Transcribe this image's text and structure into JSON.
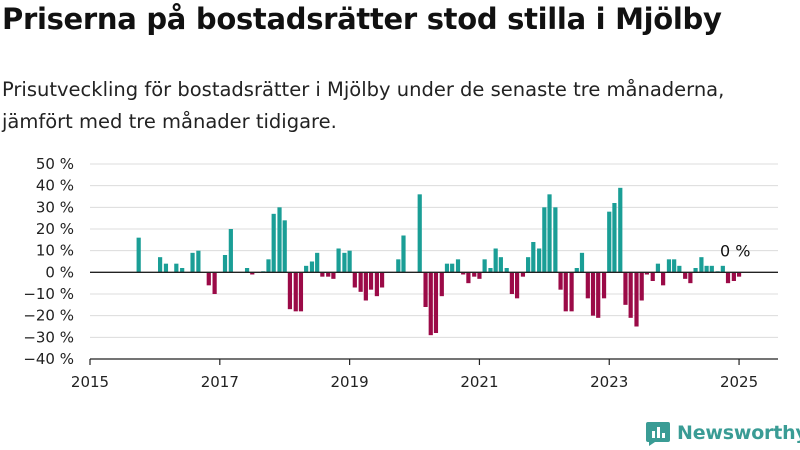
{
  "title": "Priserna på bostadsrätter stod stilla i Mjölby",
  "subtitle": "Prisutveckling för bostadsrätter i Mjölby under de senaste tre månaderna, jämfört med tre månader tidigare.",
  "brand": {
    "name": "Newsworthy",
    "color": "#3a9c95"
  },
  "colors": {
    "positive": "#1a9e96",
    "negative": "#9b0a47",
    "grid": "#dcdcdc",
    "axis": "#222222"
  },
  "chart_data": {
    "type": "bar",
    "title": "Priserna på bostadsrätter stod stilla i Mjölby",
    "xlabel": "",
    "ylabel": "",
    "ylim": [
      -40,
      50
    ],
    "xlim": [
      2015,
      2025.6
    ],
    "yticks": [
      {
        "value": 50,
        "label": "50 %"
      },
      {
        "value": 40,
        "label": "40 %"
      },
      {
        "value": 30,
        "label": "30 %"
      },
      {
        "value": 20,
        "label": "20 %"
      },
      {
        "value": 10,
        "label": "10 %"
      },
      {
        "value": 0,
        "label": "0 %"
      },
      {
        "value": -10,
        "label": "−10 %"
      },
      {
        "value": -20,
        "label": "−20 %"
      },
      {
        "value": -30,
        "label": "−30 %"
      },
      {
        "value": -40,
        "label": "−40 %"
      }
    ],
    "xticks": [
      {
        "value": 2015,
        "label": "2015"
      },
      {
        "value": 2017,
        "label": "2017"
      },
      {
        "value": 2019,
        "label": "2019"
      },
      {
        "value": 2021,
        "label": "2021"
      },
      {
        "value": 2023,
        "label": "2023"
      },
      {
        "value": 2025,
        "label": "2025"
      }
    ],
    "grid": true,
    "annotation": {
      "text": "0 %",
      "x": 2024.83,
      "y": 0
    },
    "series": [
      {
        "values": [
          [
            2015.75,
            16
          ],
          [
            2016.08,
            7
          ],
          [
            2016.17,
            4
          ],
          [
            2016.33,
            4
          ],
          [
            2016.42,
            2
          ],
          [
            2016.58,
            9
          ],
          [
            2016.67,
            10
          ],
          [
            2016.83,
            -6
          ],
          [
            2016.92,
            -10
          ],
          [
            2017.08,
            8
          ],
          [
            2017.17,
            20
          ],
          [
            2017.42,
            2
          ],
          [
            2017.5,
            -1
          ],
          [
            2017.67,
            0.5
          ],
          [
            2017.75,
            6
          ],
          [
            2017.83,
            27
          ],
          [
            2017.92,
            30
          ],
          [
            2018.0,
            24
          ],
          [
            2018.08,
            -17
          ],
          [
            2018.17,
            -18
          ],
          [
            2018.25,
            -18
          ],
          [
            2018.33,
            3
          ],
          [
            2018.42,
            5
          ],
          [
            2018.5,
            9
          ],
          [
            2018.58,
            -2
          ],
          [
            2018.67,
            -2
          ],
          [
            2018.75,
            -3
          ],
          [
            2018.83,
            11
          ],
          [
            2018.92,
            9
          ],
          [
            2019.0,
            10
          ],
          [
            2019.08,
            -7
          ],
          [
            2019.17,
            -9
          ],
          [
            2019.25,
            -13
          ],
          [
            2019.33,
            -8
          ],
          [
            2019.42,
            -11
          ],
          [
            2019.5,
            -7
          ],
          [
            2019.75,
            6
          ],
          [
            2019.83,
            17
          ],
          [
            2020.08,
            36
          ],
          [
            2020.17,
            -16
          ],
          [
            2020.25,
            -29
          ],
          [
            2020.33,
            -28
          ],
          [
            2020.42,
            -11
          ],
          [
            2020.5,
            4
          ],
          [
            2020.58,
            4
          ],
          [
            2020.67,
            6
          ],
          [
            2020.75,
            -1
          ],
          [
            2020.83,
            -5
          ],
          [
            2020.92,
            -2
          ],
          [
            2021.0,
            -3
          ],
          [
            2021.08,
            6
          ],
          [
            2021.17,
            2
          ],
          [
            2021.25,
            11
          ],
          [
            2021.33,
            7
          ],
          [
            2021.42,
            2
          ],
          [
            2021.5,
            -10
          ],
          [
            2021.58,
            -12
          ],
          [
            2021.67,
            -2
          ],
          [
            2021.75,
            7
          ],
          [
            2021.83,
            14
          ],
          [
            2021.92,
            11
          ],
          [
            2022.0,
            30
          ],
          [
            2022.08,
            36
          ],
          [
            2022.17,
            30
          ],
          [
            2022.25,
            -8
          ],
          [
            2022.33,
            -18
          ],
          [
            2022.42,
            -18
          ],
          [
            2022.5,
            2
          ],
          [
            2022.58,
            9
          ],
          [
            2022.67,
            -12
          ],
          [
            2022.75,
            -20
          ],
          [
            2022.83,
            -21
          ],
          [
            2022.92,
            -12
          ],
          [
            2023.0,
            28
          ],
          [
            2023.08,
            32
          ],
          [
            2023.17,
            39
          ],
          [
            2023.25,
            -15
          ],
          [
            2023.33,
            -21
          ],
          [
            2023.42,
            -25
          ],
          [
            2023.5,
            -13
          ],
          [
            2023.58,
            -1
          ],
          [
            2023.67,
            -4
          ],
          [
            2023.75,
            4
          ],
          [
            2023.83,
            -6
          ],
          [
            2023.92,
            6
          ],
          [
            2024.0,
            6
          ],
          [
            2024.08,
            3
          ],
          [
            2024.17,
            -3
          ],
          [
            2024.25,
            -5
          ],
          [
            2024.33,
            2
          ],
          [
            2024.42,
            7
          ],
          [
            2024.5,
            3
          ],
          [
            2024.58,
            3
          ],
          [
            2024.67,
            0.5
          ],
          [
            2024.75,
            3
          ],
          [
            2024.83,
            -5
          ],
          [
            2024.92,
            -4
          ],
          [
            2025.0,
            -2
          ]
        ]
      }
    ]
  }
}
